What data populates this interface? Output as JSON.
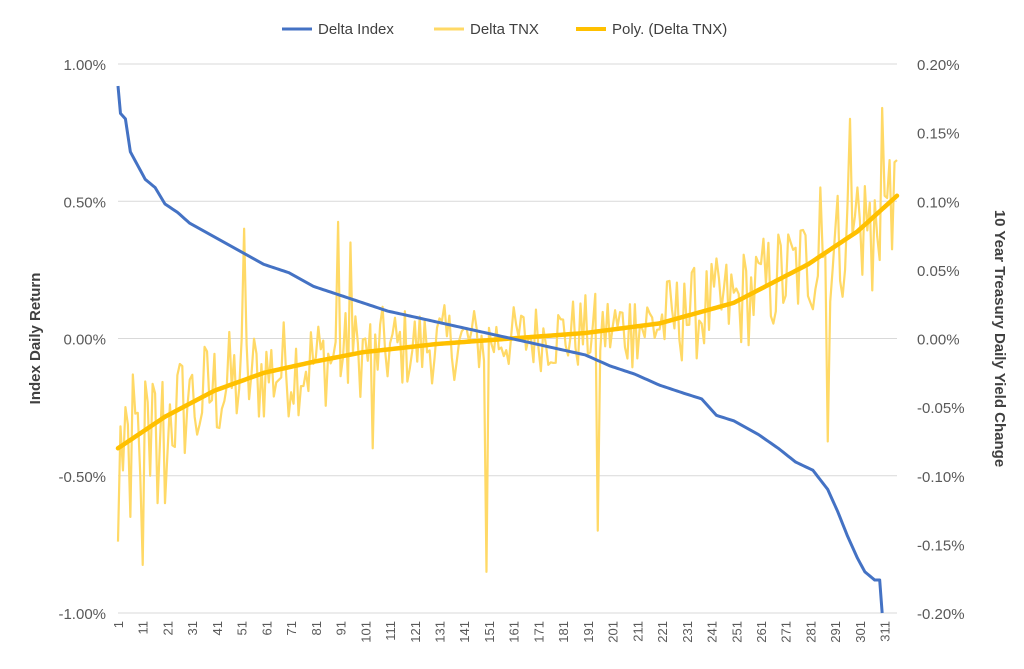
{
  "chart_data": {
    "type": "line",
    "title": "",
    "xlabel": "",
    "ylabel": "Index Daily Return",
    "y2label": "10 Year Treasury Daily Yield Change",
    "n_points": 316,
    "xlim": [
      1,
      316
    ],
    "ylim": [
      -0.01,
      0.01
    ],
    "y2lim": [
      -0.002,
      0.002
    ],
    "grid": true,
    "legend_position": "top",
    "x_tick_labels": [
      "1",
      "11",
      "21",
      "31",
      "41",
      "51",
      "61",
      "71",
      "81",
      "91",
      "101",
      "111",
      "121",
      "131",
      "141",
      "151",
      "161",
      "171",
      "181",
      "191",
      "201",
      "211",
      "221",
      "231",
      "241",
      "251",
      "261",
      "271",
      "281",
      "291",
      "301",
      "311"
    ],
    "y_tick_values": [
      0.01,
      0.005,
      0,
      -0.005,
      -0.01
    ],
    "y_tick_labels": [
      "1.00%",
      "0.50%",
      "0.00%",
      "-0.50%",
      "-1.00%"
    ],
    "y2_tick_values": [
      0.002,
      0.0015,
      0.001,
      0.0005,
      0,
      -0.0005,
      -0.001,
      -0.0015,
      -0.002
    ],
    "y2_tick_labels": [
      "0.20%",
      "0.15%",
      "0.10%",
      "0.05%",
      "0.00%",
      "-0.05%",
      "-0.10%",
      "-0.15%",
      "-0.20%"
    ],
    "series": [
      {
        "name": "Delta Index",
        "axis": "left",
        "color": "#4472c4",
        "kind": "line",
        "control_points": [
          [
            1,
            0.0092
          ],
          [
            2,
            0.0082
          ],
          [
            4,
            0.008
          ],
          [
            6,
            0.0068
          ],
          [
            9,
            0.0063
          ],
          [
            12,
            0.0058
          ],
          [
            16,
            0.0055
          ],
          [
            20,
            0.0049
          ],
          [
            25,
            0.0046
          ],
          [
            30,
            0.0042
          ],
          [
            40,
            0.0037
          ],
          [
            50,
            0.0032
          ],
          [
            60,
            0.0027
          ],
          [
            70,
            0.0024
          ],
          [
            80,
            0.0019
          ],
          [
            90,
            0.0016
          ],
          [
            100,
            0.0013
          ],
          [
            110,
            0.001
          ],
          [
            120,
            0.0008
          ],
          [
            130,
            0.0006
          ],
          [
            140,
            0.0004
          ],
          [
            150,
            0.0002
          ],
          [
            160,
            0.0
          ],
          [
            170,
            -0.0002
          ],
          [
            180,
            -0.0004
          ],
          [
            190,
            -0.0006
          ],
          [
            200,
            -0.001
          ],
          [
            210,
            -0.0013
          ],
          [
            220,
            -0.0017
          ],
          [
            230,
            -0.002
          ],
          [
            237,
            -0.0022
          ],
          [
            243,
            -0.0028
          ],
          [
            250,
            -0.003
          ],
          [
            260,
            -0.0035
          ],
          [
            268,
            -0.004
          ],
          [
            275,
            -0.0045
          ],
          [
            282,
            -0.0048
          ],
          [
            288,
            -0.0055
          ],
          [
            292,
            -0.0063
          ],
          [
            296,
            -0.0072
          ],
          [
            300,
            -0.008
          ],
          [
            303,
            -0.0085
          ],
          [
            307,
            -0.0088
          ],
          [
            309,
            -0.0088
          ],
          [
            310,
            -0.01
          ]
        ]
      },
      {
        "name": "Delta TNX",
        "axis": "right",
        "color": "#ffd966",
        "kind": "line",
        "trend_points": [
          [
            1,
            -0.0008
          ],
          [
            20,
            -0.00057
          ],
          [
            40,
            -0.00038
          ],
          [
            60,
            -0.00025
          ],
          [
            80,
            -0.00017
          ],
          [
            100,
            -0.0001
          ],
          [
            130,
            -4e-05
          ],
          [
            160,
            0.0
          ],
          [
            190,
            4e-05
          ],
          [
            220,
            0.00011
          ],
          [
            250,
            0.00026
          ],
          [
            280,
            0.00054
          ],
          [
            300,
            0.00078
          ],
          [
            316,
            0.00104
          ]
        ],
        "noise_amplitude": 0.0004,
        "extreme_points": [
          [
            1,
            -0.00148
          ],
          [
            4,
            -0.0005
          ],
          [
            6,
            -0.0013
          ],
          [
            11,
            -0.00165
          ],
          [
            14,
            -0.001
          ],
          [
            17,
            -0.0012
          ],
          [
            20,
            -0.0012
          ],
          [
            30,
            -0.0003
          ],
          [
            33,
            -0.0007
          ],
          [
            52,
            0.0008
          ],
          [
            90,
            0.00085
          ],
          [
            95,
            0.0007
          ],
          [
            104,
            -0.0008
          ],
          [
            150,
            -0.0017
          ],
          [
            195,
            -0.0014
          ],
          [
            210,
            0.00025
          ],
          [
            230,
            0.0004
          ],
          [
            260,
            0.00055
          ],
          [
            285,
            0.0011
          ],
          [
            288,
            -0.00075
          ],
          [
            297,
            0.0016
          ],
          [
            300,
            0.0011
          ],
          [
            306,
            0.00035
          ],
          [
            310,
            0.00168
          ],
          [
            313,
            0.0013
          ],
          [
            314,
            0.00065
          ],
          [
            316,
            0.0013
          ]
        ]
      },
      {
        "name": "Poly. (Delta TNX)",
        "axis": "right",
        "color": "#ffc000",
        "kind": "trendline"
      }
    ]
  }
}
